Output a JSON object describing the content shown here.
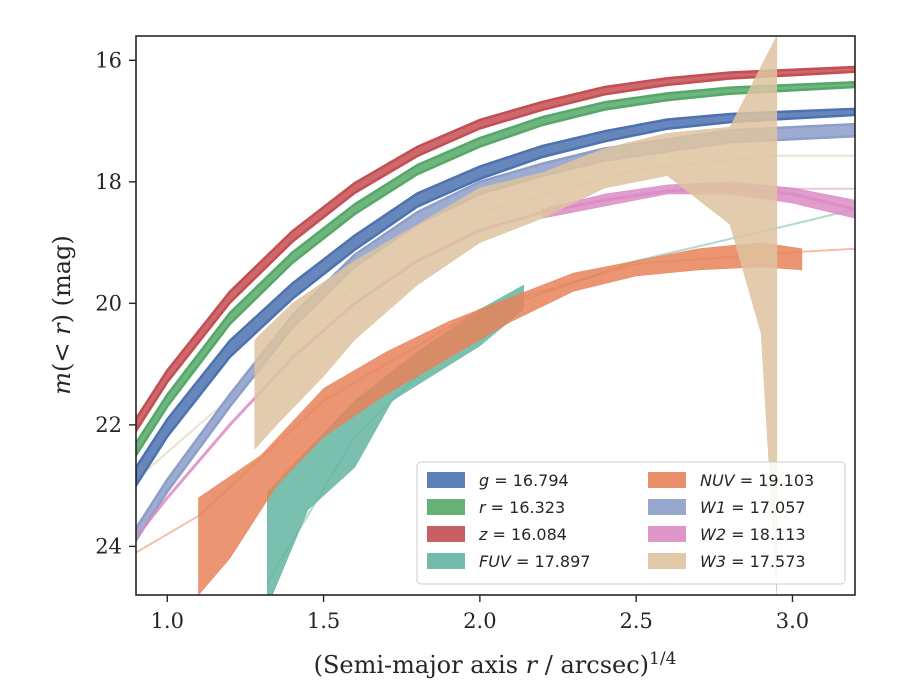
{
  "chart_data": {
    "type": "area",
    "xlabel": "(Semi-major axis r / arcsec)^{1/4}",
    "ylabel": "m(< r) (mag)",
    "xlim": [
      0.9,
      3.2
    ],
    "ylim": [
      24.8,
      15.6
    ],
    "y_inverted": true,
    "x_ticks": [
      "1.0",
      "1.5",
      "2.0",
      "2.5",
      "3.0"
    ],
    "y_ticks": [
      "16",
      "18",
      "20",
      "22",
      "24"
    ],
    "grid": false,
    "legend_placement": "lower-right",
    "legend_columns": 2,
    "series": [
      {
        "name": "g = 16.794",
        "color": "#4c72b0",
        "data": [
          [
            0.9,
            22.85
          ],
          [
            1.0,
            22.05
          ],
          [
            1.2,
            20.75
          ],
          [
            1.4,
            19.8
          ],
          [
            1.6,
            19.0
          ],
          [
            1.8,
            18.3
          ],
          [
            2.0,
            17.85
          ],
          [
            2.2,
            17.5
          ],
          [
            2.4,
            17.25
          ],
          [
            2.6,
            17.05
          ],
          [
            2.8,
            16.95
          ],
          [
            3.0,
            16.9
          ],
          [
            3.2,
            16.85
          ]
        ],
        "band": [
          [
            0.9,
            0.15
          ],
          [
            3.2,
            0.05
          ]
        ]
      },
      {
        "name": "r = 16.323",
        "color": "#55a868",
        "data": [
          [
            0.9,
            22.4
          ],
          [
            1.0,
            21.6
          ],
          [
            1.2,
            20.25
          ],
          [
            1.4,
            19.25
          ],
          [
            1.6,
            18.45
          ],
          [
            1.8,
            17.8
          ],
          [
            2.0,
            17.35
          ],
          [
            2.2,
            17.0
          ],
          [
            2.4,
            16.75
          ],
          [
            2.6,
            16.6
          ],
          [
            2.8,
            16.5
          ],
          [
            3.0,
            16.45
          ],
          [
            3.2,
            16.4
          ]
        ],
        "band": [
          [
            0.9,
            0.1
          ],
          [
            3.2,
            0.04
          ]
        ]
      },
      {
        "name": "z = 16.084",
        "color": "#c44e52",
        "data": [
          [
            0.9,
            22.0
          ],
          [
            1.0,
            21.2
          ],
          [
            1.2,
            19.9
          ],
          [
            1.4,
            18.9
          ],
          [
            1.6,
            18.1
          ],
          [
            1.8,
            17.5
          ],
          [
            2.0,
            17.05
          ],
          [
            2.2,
            16.75
          ],
          [
            2.4,
            16.5
          ],
          [
            2.6,
            16.35
          ],
          [
            2.8,
            16.25
          ],
          [
            3.0,
            16.2
          ],
          [
            3.2,
            16.15
          ]
        ],
        "band": [
          [
            0.9,
            0.1
          ],
          [
            3.2,
            0.04
          ]
        ]
      },
      {
        "name": "FUV = 17.897",
        "color": "#64b5a0",
        "data": [
          [
            1.32,
            24.6
          ],
          [
            1.45,
            23.0
          ],
          [
            1.6,
            22.2
          ],
          [
            1.8,
            21.4
          ],
          [
            2.0,
            20.7
          ],
          [
            2.14,
            20.1
          ]
        ],
        "lower": [
          [
            1.32,
            23.1
          ],
          [
            1.45,
            22.4
          ],
          [
            1.6,
            21.6
          ],
          [
            1.8,
            20.8
          ],
          [
            2.0,
            20.1
          ],
          [
            2.14,
            19.7
          ]
        ],
        "upper": [
          [
            1.32,
            25.0
          ],
          [
            1.45,
            23.4
          ],
          [
            1.6,
            22.7
          ],
          [
            1.72,
            21.6
          ],
          [
            2.0,
            20.7
          ],
          [
            2.14,
            20.1
          ]
        ],
        "extrapolation": [
          [
            1.32,
            24.6
          ],
          [
            1.6,
            22.2
          ],
          [
            2.0,
            20.2
          ],
          [
            2.5,
            19.3
          ],
          [
            3.0,
            18.7
          ],
          [
            3.2,
            18.45
          ]
        ]
      },
      {
        "name": "NUV = 19.103",
        "color": "#e8825a",
        "data": [
          [
            1.1,
            23.5
          ],
          [
            1.2,
            22.8
          ],
          [
            1.4,
            22.0
          ],
          [
            1.6,
            21.2
          ],
          [
            1.8,
            20.6
          ],
          [
            2.0,
            20.1
          ],
          [
            2.2,
            19.7
          ],
          [
            2.4,
            19.4
          ],
          [
            2.6,
            19.25
          ],
          [
            2.8,
            19.15
          ],
          [
            3.03,
            19.15
          ]
        ],
        "lower": [
          [
            1.1,
            23.2
          ],
          [
            1.3,
            22.5
          ],
          [
            1.5,
            21.4
          ],
          [
            1.7,
            20.8
          ],
          [
            1.9,
            20.3
          ],
          [
            2.1,
            19.9
          ],
          [
            2.3,
            19.5
          ],
          [
            2.5,
            19.3
          ],
          [
            2.7,
            19.1
          ],
          [
            2.9,
            19.0
          ],
          [
            3.03,
            19.1
          ]
        ],
        "upper": [
          [
            1.1,
            24.8
          ],
          [
            1.2,
            24.2
          ],
          [
            1.35,
            23.0
          ],
          [
            1.5,
            22.2
          ],
          [
            1.7,
            21.5
          ],
          [
            1.9,
            20.9
          ],
          [
            2.1,
            20.3
          ],
          [
            2.3,
            19.8
          ],
          [
            2.5,
            19.55
          ],
          [
            2.7,
            19.45
          ],
          [
            2.9,
            19.4
          ],
          [
            3.03,
            19.45
          ]
        ],
        "extrapolation": [
          [
            0.9,
            24.1
          ],
          [
            1.1,
            23.5
          ],
          [
            1.5,
            21.6
          ],
          [
            2.0,
            20.1
          ],
          [
            2.5,
            19.35
          ],
          [
            3.03,
            19.15
          ],
          [
            3.2,
            19.1
          ]
        ]
      },
      {
        "name": "W1 = 17.057",
        "color": "#8c9ec9",
        "data": [
          [
            0.9,
            23.8
          ],
          [
            1.0,
            23.0
          ],
          [
            1.2,
            21.6
          ],
          [
            1.4,
            20.3
          ],
          [
            1.6,
            19.3
          ],
          [
            1.8,
            18.6
          ],
          [
            2.0,
            18.1
          ],
          [
            2.2,
            17.8
          ],
          [
            2.4,
            17.55
          ],
          [
            2.6,
            17.4
          ],
          [
            2.8,
            17.25
          ],
          [
            3.0,
            17.2
          ],
          [
            3.2,
            17.15
          ]
        ],
        "band": [
          [
            0.9,
            0.1
          ],
          [
            3.2,
            0.1
          ]
        ]
      },
      {
        "name": "W2 = 18.113",
        "color": "#da8bc3",
        "data": [
          [
            0.9,
            23.85
          ],
          [
            1.0,
            23.2
          ],
          [
            1.2,
            22.0
          ],
          [
            1.4,
            20.9
          ],
          [
            1.6,
            20.0
          ],
          [
            1.8,
            19.3
          ],
          [
            2.0,
            18.8
          ],
          [
            2.2,
            18.5
          ],
          [
            2.4,
            18.3
          ],
          [
            2.6,
            18.15
          ],
          [
            2.8,
            18.1
          ],
          [
            3.0,
            18.2
          ],
          [
            3.2,
            18.45
          ]
        ],
        "lower": [
          [
            2.2,
            18.45
          ],
          [
            2.4,
            18.2
          ],
          [
            2.6,
            18.05
          ],
          [
            2.8,
            18.0
          ],
          [
            3.0,
            18.1
          ],
          [
            3.2,
            18.3
          ]
        ],
        "upper": [
          [
            2.2,
            18.6
          ],
          [
            2.4,
            18.4
          ],
          [
            2.6,
            18.2
          ],
          [
            2.8,
            18.2
          ],
          [
            3.0,
            18.35
          ],
          [
            3.2,
            18.6
          ]
        ],
        "extrapolation_value": 18.113
      },
      {
        "name": "W3 = 17.573",
        "color": "#dec3a0",
        "data": [
          [
            1.28,
            21.2
          ],
          [
            1.4,
            20.6
          ],
          [
            1.6,
            19.6
          ],
          [
            1.8,
            18.9
          ],
          [
            2.0,
            18.45
          ],
          [
            2.2,
            18.1
          ],
          [
            2.4,
            17.7
          ],
          [
            2.6,
            17.5
          ],
          [
            2.8,
            17.5
          ],
          [
            2.95,
            17.57
          ]
        ],
        "lower": [
          [
            1.28,
            20.6
          ],
          [
            1.4,
            20.0
          ],
          [
            1.6,
            19.3
          ],
          [
            1.8,
            18.7
          ],
          [
            2.0,
            18.1
          ],
          [
            2.2,
            17.85
          ],
          [
            2.4,
            17.45
          ],
          [
            2.6,
            17.2
          ],
          [
            2.8,
            17.1
          ],
          [
            2.95,
            15.6
          ]
        ],
        "upper": [
          [
            1.28,
            22.4
          ],
          [
            1.35,
            22.0
          ],
          [
            1.5,
            21.2
          ],
          [
            1.6,
            20.6
          ],
          [
            1.8,
            19.7
          ],
          [
            2.0,
            19.0
          ],
          [
            2.2,
            18.6
          ],
          [
            2.4,
            18.1
          ],
          [
            2.6,
            17.9
          ],
          [
            2.8,
            18.7
          ],
          [
            2.9,
            20.5
          ],
          [
            2.95,
            24.8
          ]
        ],
        "extrapolation": [
          [
            0.9,
            22.9
          ],
          [
            1.28,
            21.2
          ],
          [
            1.6,
            19.7
          ],
          [
            2.0,
            18.5
          ],
          [
            2.5,
            17.8
          ],
          [
            2.95,
            17.57
          ],
          [
            3.2,
            17.57
          ]
        ]
      }
    ]
  }
}
